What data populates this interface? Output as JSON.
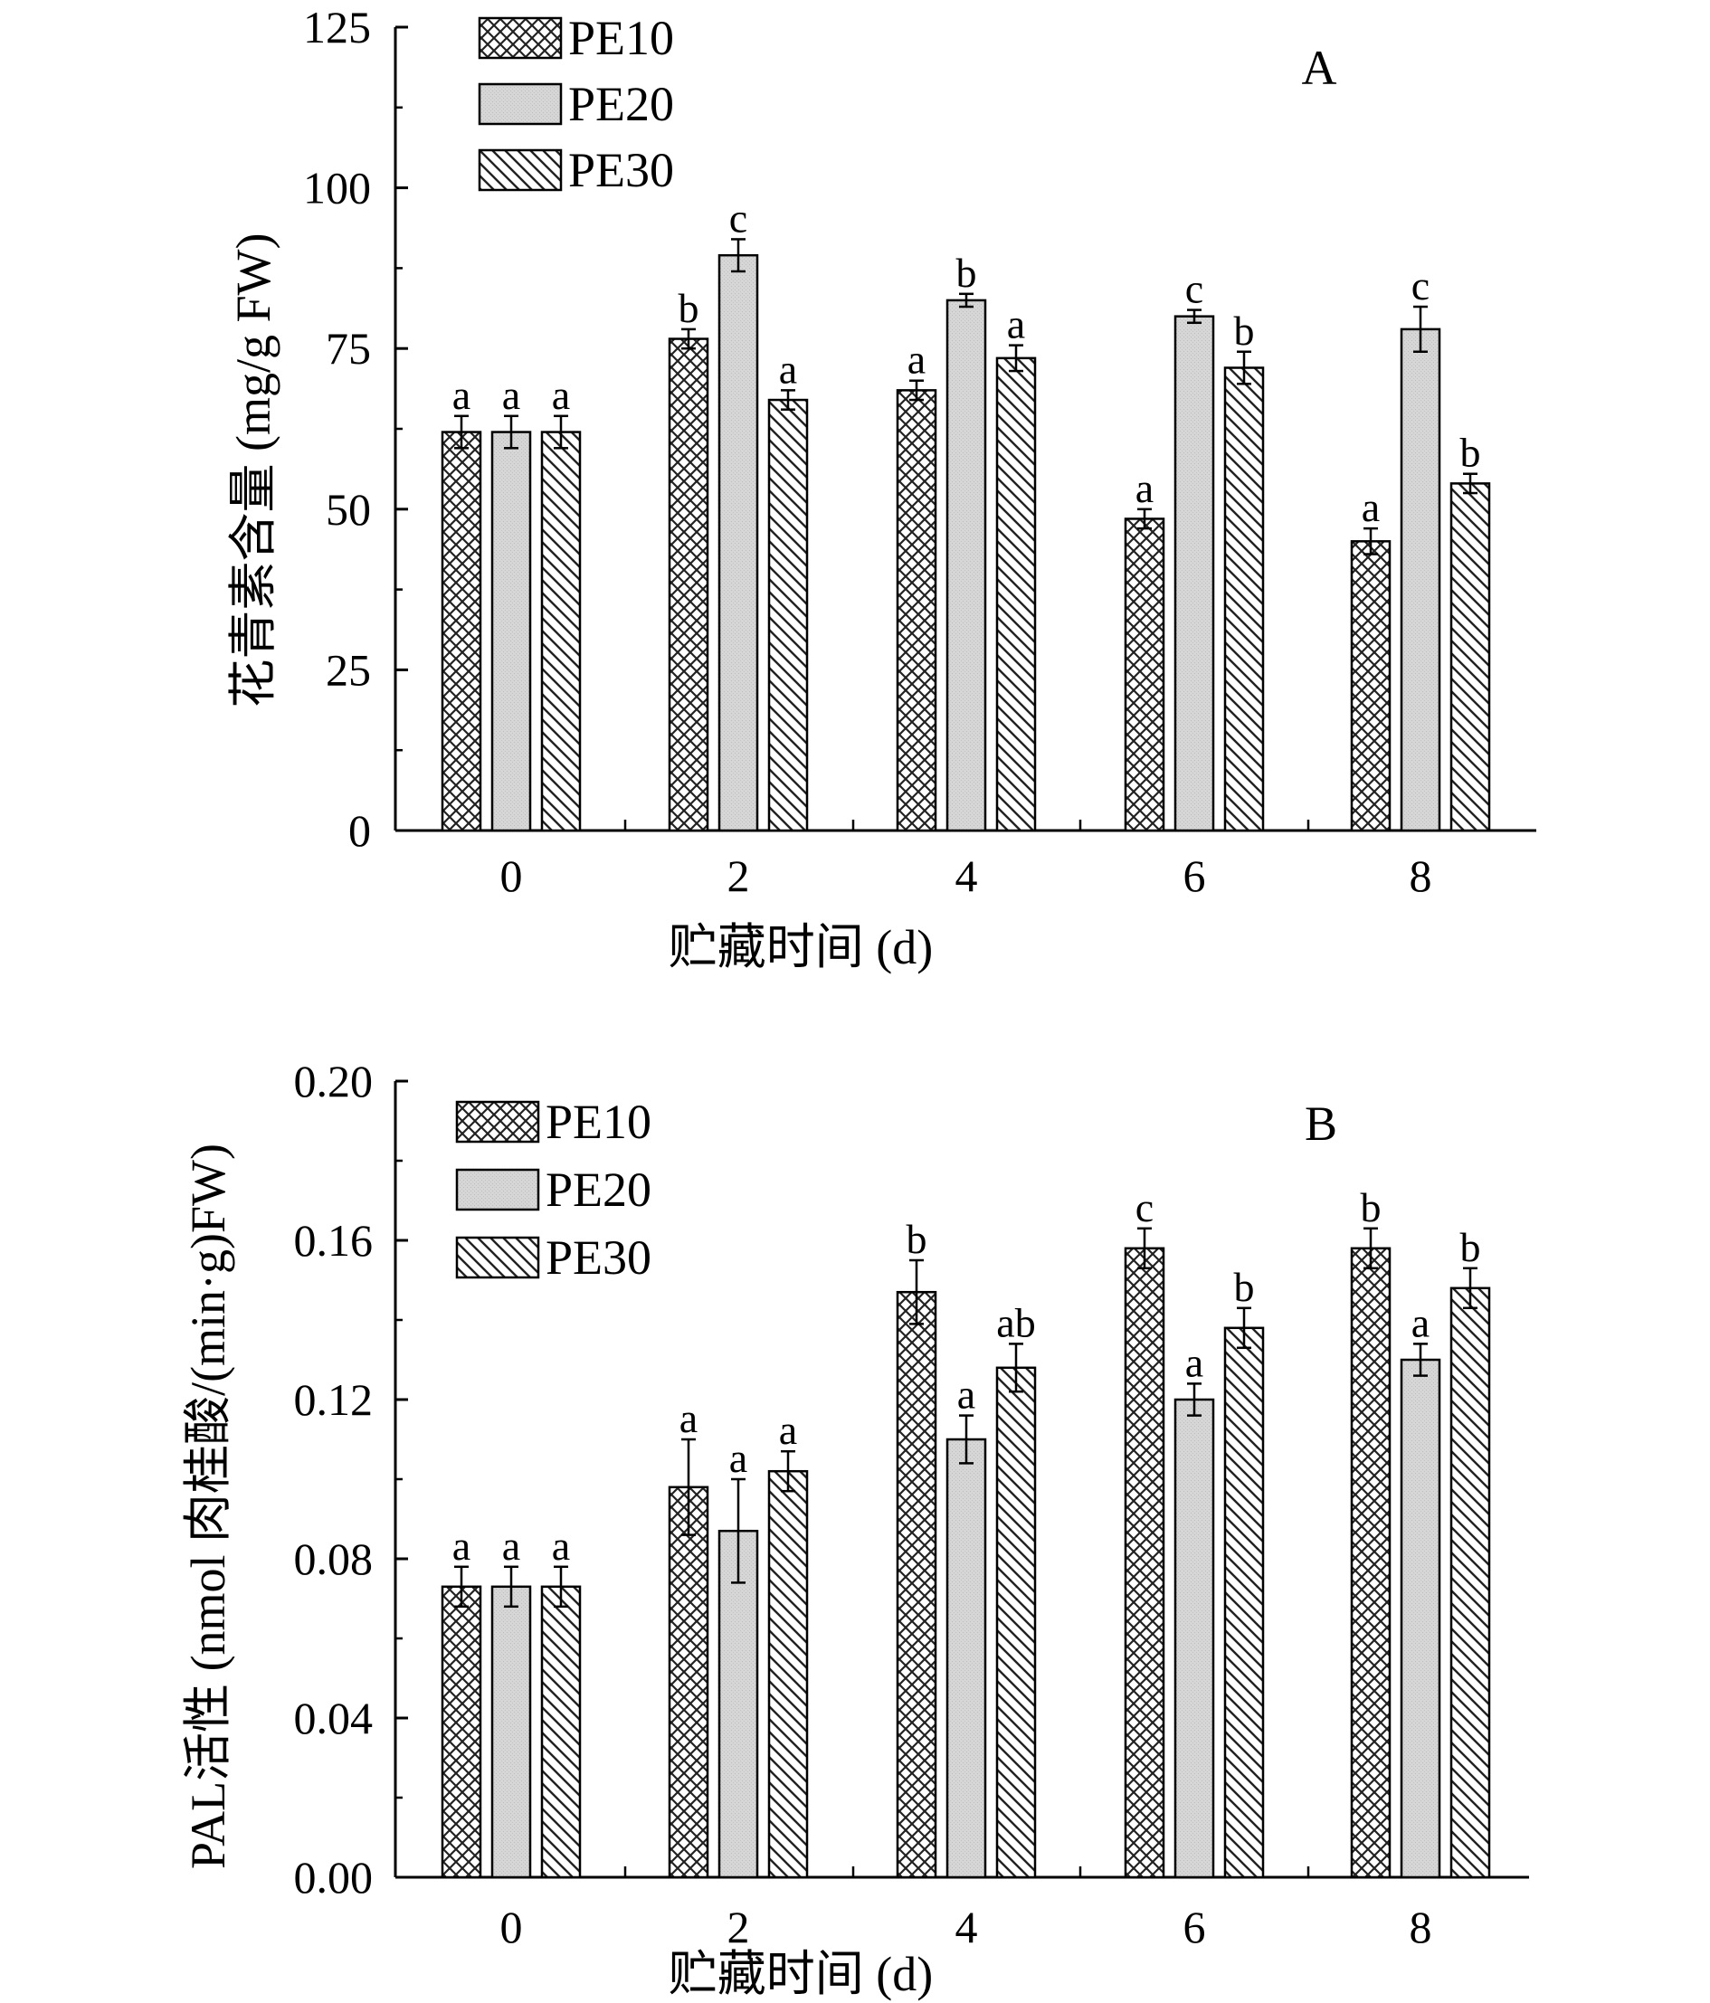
{
  "colors": {
    "axis": "#000000",
    "hatch": "#222222",
    "pe20_fill": "#d9d9d9",
    "background": "#ffffff"
  },
  "chart_data": [
    {
      "type": "bar",
      "panel": "A",
      "categories": [
        "0",
        "2",
        "4",
        "6",
        "8"
      ],
      "xlabel": "贮藏时间 (d)",
      "ylabel": "花青素含量 (mg/g FW)",
      "ylim": [
        0,
        125
      ],
      "yticks": [
        "0",
        "25",
        "50",
        "75",
        "100",
        "125"
      ],
      "ytick_values": [
        0,
        25,
        50,
        75,
        100,
        125
      ],
      "legend_position": "top-left",
      "grid": false,
      "series": [
        {
          "name": "PE10",
          "pattern": "crosshatch",
          "values": [
            62,
            76.5,
            68.5,
            48.5,
            45
          ],
          "errors": [
            2.5,
            1.5,
            1.5,
            1.5,
            2
          ],
          "labels": [
            "a",
            "b",
            "a",
            "a",
            "a"
          ]
        },
        {
          "name": "PE20",
          "pattern": "gray",
          "values": [
            62,
            89.5,
            82.5,
            80,
            78
          ],
          "errors": [
            2.5,
            2.5,
            1,
            1,
            3.5
          ],
          "labels": [
            "a",
            "c",
            "b",
            "c",
            "c"
          ]
        },
        {
          "name": "PE30",
          "pattern": "diagonal",
          "values": [
            62,
            67,
            73.5,
            72,
            54
          ],
          "errors": [
            2.5,
            1.5,
            2,
            2.5,
            1.5
          ],
          "labels": [
            "a",
            "a",
            "a",
            "b",
            "b"
          ]
        }
      ]
    },
    {
      "type": "bar",
      "panel": "B",
      "categories": [
        "0",
        "2",
        "4",
        "6",
        "8"
      ],
      "xlabel": "贮藏时间 (d)",
      "ylabel": "PAL活性 (nmol 肉桂酸/(min·g)FW)",
      "ylim": [
        0,
        0.2
      ],
      "yticks": [
        "0.00",
        "0.04",
        "0.08",
        "0.12",
        "0.16",
        "0.20"
      ],
      "ytick_values": [
        0,
        0.04,
        0.08,
        0.12,
        0.16,
        0.2
      ],
      "legend_position": "top-left",
      "grid": false,
      "series": [
        {
          "name": "PE10",
          "pattern": "crosshatch",
          "values": [
            0.073,
            0.098,
            0.147,
            0.158,
            0.158
          ],
          "errors": [
            0.005,
            0.012,
            0.008,
            0.005,
            0.005
          ],
          "labels": [
            "a",
            "a",
            "b",
            "c",
            "b"
          ]
        },
        {
          "name": "PE20",
          "pattern": "gray",
          "values": [
            0.073,
            0.087,
            0.11,
            0.12,
            0.13
          ],
          "errors": [
            0.005,
            0.013,
            0.006,
            0.004,
            0.004
          ],
          "labels": [
            "a",
            "a",
            "a",
            "a",
            "a"
          ]
        },
        {
          "name": "PE30",
          "pattern": "diagonal",
          "values": [
            0.073,
            0.102,
            0.128,
            0.138,
            0.148
          ],
          "errors": [
            0.005,
            0.005,
            0.006,
            0.005,
            0.005
          ],
          "labels": [
            "a",
            "a",
            "ab",
            "b",
            "b"
          ]
        }
      ]
    }
  ]
}
